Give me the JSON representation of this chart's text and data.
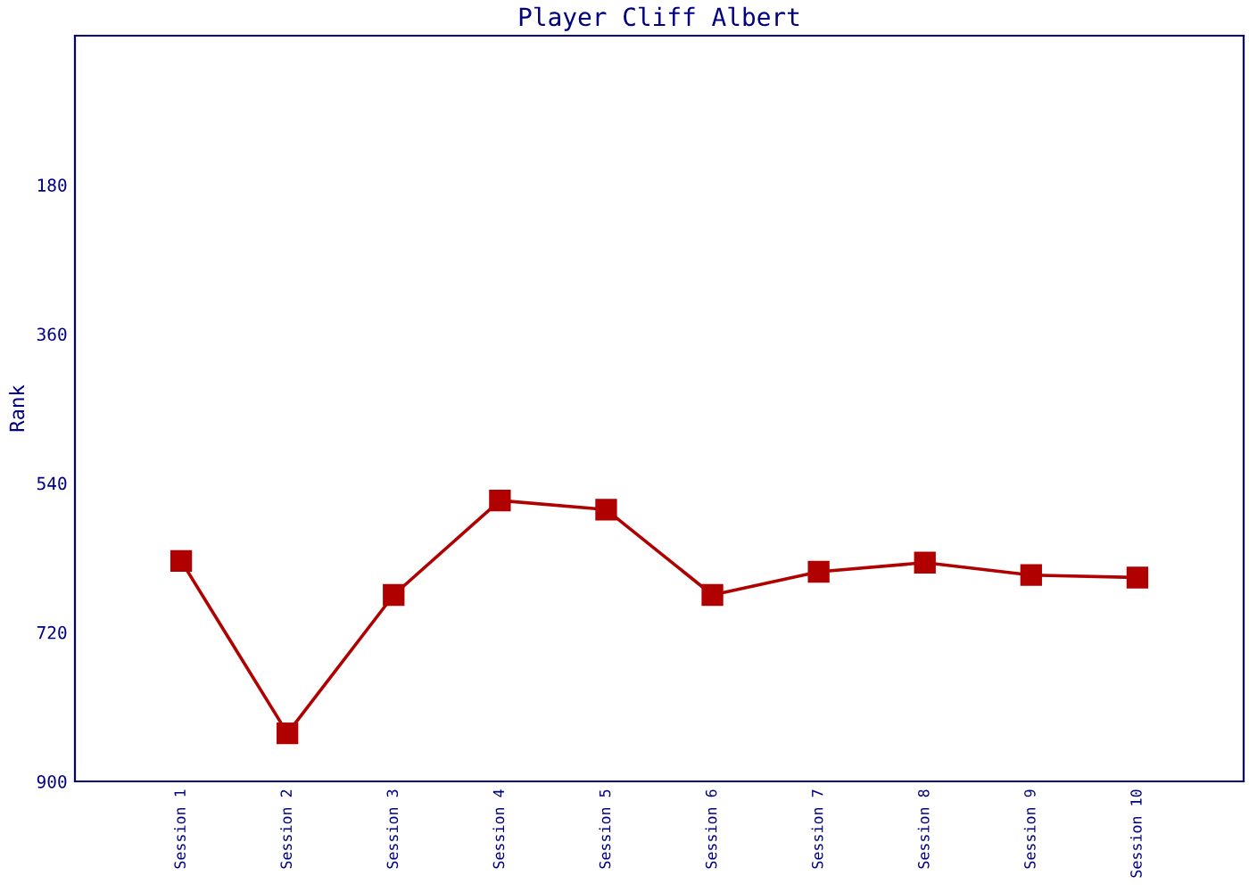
{
  "chart_data": {
    "type": "line",
    "title": "Player Cliff Albert",
    "ylabel": "Rank",
    "categories": [
      "Session 1",
      "Session 2",
      "Session 3",
      "Session 4",
      "Session 5",
      "Session 6",
      "Session 7",
      "Session 8",
      "Session 9",
      "Session 10"
    ],
    "series": [
      {
        "color": "#b00000",
        "values": [
          634,
          842,
          675,
          561,
          572,
          675,
          647,
          636,
          651,
          654
        ]
      }
    ],
    "ylim": [
      900,
      0
    ],
    "yticks": [
      180,
      360,
      540,
      720,
      900
    ],
    "marker": "square",
    "line_style": "solid",
    "grid": false,
    "legend": false
  }
}
